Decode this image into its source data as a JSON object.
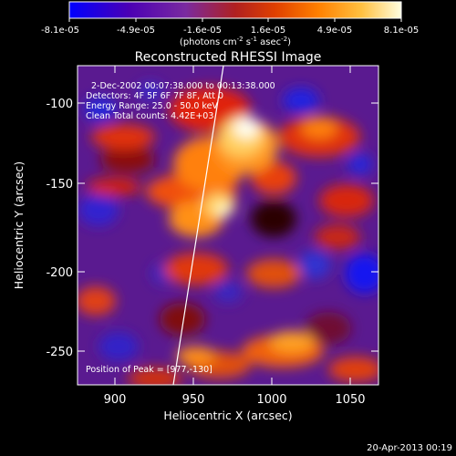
{
  "colorbar": {
    "ticks": [
      "-8.1e-05",
      "-4.9e-05",
      "-1.6e-05",
      "1.6e-05",
      "4.9e-05",
      "8.1e-05"
    ],
    "unit_main": "(photons cm",
    "unit_sup1": "-2",
    "unit_mid": " s",
    "unit_sup2": "-1",
    "unit_end": " asec",
    "unit_sup3": "-2",
    "unit_close": ")",
    "stops": [
      "#0000ff",
      "#4b00b4",
      "#7a2aa0",
      "#b02020",
      "#e04000",
      "#ff8000",
      "#ffc040",
      "#ffffe0"
    ]
  },
  "image": {
    "title": "Reconstructed RHESSI Image",
    "info": [
      "2-Dec-2002 00:07:38.000 to 00:13:38.000",
      "Detectors: 4F 5F 6F 7F 8F, Att 0",
      "Energy Range: 25.0 - 50.0 keV",
      "Clean     Total counts: 4.42E+03"
    ],
    "peak": "Position of Peak = [977,-130]",
    "xlabel": "Heliocentric X (arcsec)",
    "ylabel": "Heliocentric Y (arcsec)",
    "xticks": [
      "900",
      "950",
      "1000",
      "1050"
    ],
    "yticks": [
      "-100",
      "-150",
      "-200",
      "-250"
    ],
    "footer": "20-Apr-2013 00:19"
  }
}
